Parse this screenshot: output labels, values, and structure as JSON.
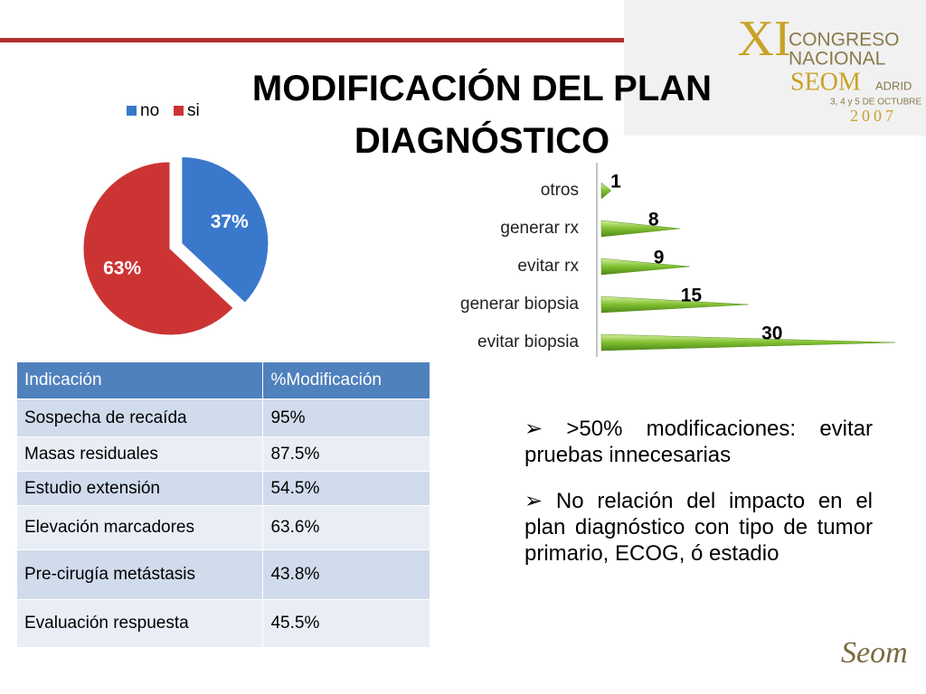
{
  "title": "MODIFICACIÓN DEL PLAN DIAGNÓSTICO",
  "logo": {
    "numeral": "XI",
    "line1": "CONGRESO",
    "line2": "NACIONAL",
    "line3": "SEOM",
    "city": "ADRID",
    "dates": "3, 4 y 5 DE OCTUBRE",
    "year": "2007"
  },
  "chart_data": [
    {
      "type": "pie",
      "categories": [
        "no",
        "si"
      ],
      "values": [
        37,
        63
      ],
      "value_labels": [
        "37%",
        "63%"
      ],
      "colors": [
        "#3a78cc",
        "#cc3434"
      ],
      "legend": "top"
    },
    {
      "type": "bar",
      "orientation": "horizontal",
      "categories": [
        "otros",
        "generar rx",
        "evitar rx",
        "generar biopsia",
        "evitar biopsia"
      ],
      "values": [
        1,
        8,
        9,
        15,
        30
      ],
      "color": "#8cc63f",
      "xlim": [
        0,
        30
      ]
    }
  ],
  "table": {
    "header": [
      "Indicación",
      "%Modificación"
    ],
    "rows": [
      [
        "Sospecha de recaída",
        "95%"
      ],
      [
        "Masas residuales",
        "87.5%"
      ],
      [
        "Estudio extensión",
        "54.5%"
      ],
      [
        "Elevación marcadores",
        "63.6%"
      ],
      [
        "Pre-cirugía metástasis",
        "43.8%"
      ],
      [
        "Evaluación respuesta",
        "45.5%"
      ]
    ]
  },
  "bullets": [
    ">50% modificaciones: evitar pruebas innecesarias",
    "No relación del impacto en el plan diagnóstico con tipo de tumor primario, ECOG, ó estadio"
  ]
}
